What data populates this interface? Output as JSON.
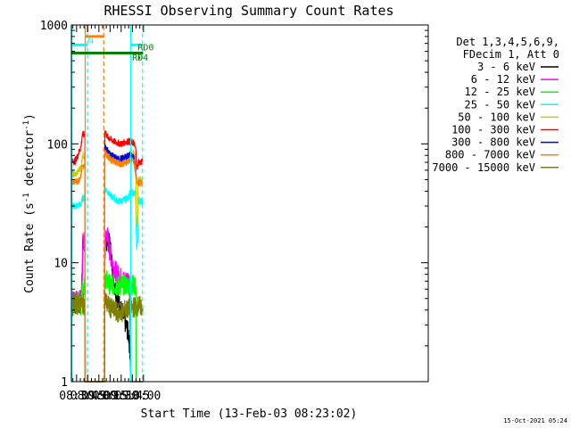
{
  "chart_data": {
    "type": "line",
    "title": "RHESSI Observing Summary Count Rates",
    "xlabel": "Start Time (13-Feb-03 08:23:02)",
    "ylabel_main": "Count Rate (s",
    "ylabel_sup1": "-1",
    "ylabel_mid": " detector",
    "ylabel_sup2": "-1",
    "ylabel_end": ")",
    "yscale": "log",
    "ylim": [
      1,
      1000
    ],
    "y_ticks": [
      {
        "v": 1,
        "label": "1"
      },
      {
        "v": 10,
        "label": "10"
      },
      {
        "v": 100,
        "label": "100"
      },
      {
        "v": 1000,
        "label": "1000"
      }
    ],
    "xlim_min": [
      503.0,
      983.0
    ],
    "x_ticks": [
      {
        "v": 510,
        "label": "08:30"
      },
      {
        "v": 525,
        "label": "08:45"
      },
      {
        "v": 540,
        "label": "09:00"
      },
      {
        "v": 555,
        "label": "09:15"
      },
      {
        "v": 570,
        "label": "09:30"
      },
      {
        "v": 585,
        "label": "09:45"
      },
      {
        "v": 600,
        "label": "10:00"
      }
    ],
    "legend_header": [
      "Det 1,3,4,5,6,9,",
      "FDecim 1, Att 0"
    ],
    "series": [
      {
        "name": "3 - 6 keV",
        "color": "#000000",
        "points": [
          [
            503,
            4.5
          ],
          [
            513,
            4.5
          ],
          [
            516,
            4.5
          ],
          [
            517.8,
            8
          ],
          [
            518.3,
            14
          ],
          [
            519.5,
            14
          ],
          [
            521.3,
            14
          ],
          [
            521.6,
            1
          ],
          [
            545,
            1
          ],
          [
            547.5,
            1
          ],
          [
            548,
            12
          ],
          [
            551,
            16
          ],
          [
            555,
            14
          ],
          [
            560,
            7
          ],
          [
            565,
            5
          ],
          [
            570,
            4
          ],
          [
            575,
            3.2
          ],
          [
            580,
            2.5
          ],
          [
            582,
            1.8
          ],
          [
            583,
            1
          ],
          [
            599,
            1
          ]
        ]
      },
      {
        "name": "6 - 12 keV",
        "color": "#ff00ff",
        "points": [
          [
            503,
            4.8
          ],
          [
            513,
            5
          ],
          [
            516,
            4.8
          ],
          [
            517.8,
            8.5
          ],
          [
            518.3,
            15
          ],
          [
            519.5,
            15
          ],
          [
            521.3,
            15
          ],
          [
            521.6,
            1
          ],
          [
            545,
            1
          ],
          [
            547.5,
            1
          ],
          [
            548,
            15
          ],
          [
            551,
            18
          ],
          [
            555,
            12
          ],
          [
            560,
            9
          ],
          [
            565,
            8
          ],
          [
            570,
            7.5
          ],
          [
            575,
            7
          ],
          [
            580,
            7.5
          ],
          [
            581,
            7
          ],
          [
            583,
            1
          ],
          [
            599,
            1
          ]
        ]
      },
      {
        "name": "12 - 25 keV",
        "color": "#00ff00",
        "points": [
          [
            503,
            4.2
          ],
          [
            513,
            4.5
          ],
          [
            516,
            4.5
          ],
          [
            517.8,
            6.5
          ],
          [
            518.3,
            6.5
          ],
          [
            519.5,
            6.5
          ],
          [
            521.3,
            6.5
          ],
          [
            521.6,
            1
          ],
          [
            545,
            1
          ],
          [
            547.5,
            1
          ],
          [
            548,
            7.5
          ],
          [
            555,
            6.5
          ],
          [
            560,
            6.5
          ],
          [
            565,
            6.3
          ],
          [
            570,
            6.5
          ],
          [
            575,
            6.5
          ],
          [
            580,
            6.5
          ],
          [
            583,
            6.5
          ],
          [
            587,
            6.5
          ],
          [
            589.7,
            6.3
          ],
          [
            590,
            1
          ],
          [
            599,
            1
          ]
        ]
      },
      {
        "name": "25 - 50 keV",
        "color": "#00ffff",
        "points": [
          [
            503,
            30
          ],
          [
            508,
            30
          ],
          [
            511,
            30
          ],
          [
            513,
            31
          ],
          [
            516,
            31
          ],
          [
            517.8,
            35
          ],
          [
            518.3,
            35
          ],
          [
            519.5,
            35
          ],
          [
            521.3,
            35
          ],
          [
            521.6,
            1
          ],
          [
            545,
            1
          ],
          [
            547.5,
            1
          ],
          [
            548,
            43
          ],
          [
            551,
            40
          ],
          [
            555,
            37
          ],
          [
            560,
            35
          ],
          [
            565,
            33
          ],
          [
            570,
            33
          ],
          [
            575,
            34
          ],
          [
            580,
            36
          ],
          [
            583,
            40
          ],
          [
            587,
            38
          ],
          [
            589.5,
            38
          ],
          [
            590.2,
            16
          ],
          [
            591.5,
            14
          ],
          [
            592.3,
            16
          ],
          [
            592.8,
            34
          ],
          [
            594.7,
            33
          ],
          [
            599,
            33
          ]
        ]
      },
      {
        "name": "50 - 100 keV",
        "color": "#cccc00",
        "points": [
          [
            503,
            56
          ],
          [
            508,
            55
          ],
          [
            511,
            57
          ],
          [
            513,
            60
          ],
          [
            516,
            65
          ],
          [
            517.8,
            80
          ],
          [
            518.3,
            80
          ],
          [
            519.5,
            80
          ],
          [
            521.3,
            80
          ],
          [
            521.6,
            1
          ],
          [
            545,
            1
          ],
          [
            547.5,
            1
          ],
          [
            548,
            90
          ],
          [
            551,
            85
          ],
          [
            555,
            80
          ],
          [
            560,
            77
          ],
          [
            565,
            75
          ],
          [
            570,
            75
          ],
          [
            575,
            77
          ],
          [
            580,
            80
          ],
          [
            583,
            83
          ],
          [
            587,
            82
          ],
          [
            589.5,
            78
          ],
          [
            590.3,
            24
          ],
          [
            591.5,
            20
          ],
          [
            592.3,
            25
          ],
          [
            592.8,
            50
          ],
          [
            594.7,
            50
          ],
          [
            599,
            50
          ]
        ]
      },
      {
        "name": "100 - 300 keV",
        "color": "#ff0000",
        "points": [
          [
            503,
            70
          ],
          [
            508,
            72
          ],
          [
            511,
            78
          ],
          [
            513,
            85
          ],
          [
            516,
            95
          ],
          [
            517.8,
            120
          ],
          [
            518.3,
            120
          ],
          [
            519.5,
            120
          ],
          [
            521.3,
            120
          ],
          [
            521.6,
            1
          ],
          [
            545,
            1
          ],
          [
            547.5,
            1
          ],
          [
            548,
            130
          ],
          [
            551,
            115
          ],
          [
            555,
            110
          ],
          [
            560,
            105
          ],
          [
            565,
            102
          ],
          [
            570,
            100
          ],
          [
            575,
            103
          ],
          [
            580,
            106
          ],
          [
            583,
            103
          ],
          [
            587,
            102
          ],
          [
            589.5,
            90
          ],
          [
            590.5,
            70
          ],
          [
            591.8,
            60
          ],
          [
            592.8,
            70
          ],
          [
            594.7,
            70
          ],
          [
            599,
            70
          ]
        ]
      },
      {
        "name": "300 - 800 keV",
        "color": "#0000ff",
        "points": [
          [
            548,
            97
          ],
          [
            551,
            90
          ],
          [
            555,
            82
          ],
          [
            560,
            78
          ],
          [
            565,
            74
          ],
          [
            570,
            75
          ],
          [
            575,
            77
          ],
          [
            580,
            80
          ],
          [
            583,
            82
          ],
          [
            587,
            75
          ],
          [
            589.5,
            58
          ],
          [
            590.5,
            52
          ]
        ]
      },
      {
        "name": "800 - 7000 keV",
        "color": "#ff8000",
        "points": [
          [
            503,
            48
          ],
          [
            508,
            48
          ],
          [
            511,
            48
          ],
          [
            513,
            50
          ],
          [
            516,
            55
          ],
          [
            517.8,
            65
          ],
          [
            518.3,
            65
          ],
          [
            519.5,
            65
          ],
          [
            521.3,
            65
          ],
          [
            521.6,
            1
          ],
          [
            545,
            1
          ],
          [
            547.5,
            1
          ],
          [
            548,
            85
          ],
          [
            551,
            80
          ],
          [
            555,
            75
          ],
          [
            560,
            72
          ],
          [
            565,
            69
          ],
          [
            570,
            68
          ],
          [
            575,
            69
          ],
          [
            580,
            72
          ],
          [
            583,
            74
          ],
          [
            587,
            70
          ],
          [
            589.5,
            55
          ],
          [
            590.5,
            50
          ],
          [
            591.8,
            48
          ],
          [
            592.8,
            47
          ],
          [
            594.7,
            47
          ],
          [
            599,
            47
          ]
        ]
      },
      {
        "name": "7000 - 15000 keV",
        "color": "#808000",
        "points": [
          [
            503,
            4.6
          ],
          [
            505,
            4.3
          ],
          [
            507,
            4.7
          ],
          [
            510,
            4.5
          ],
          [
            513,
            4.4
          ],
          [
            516,
            4.6
          ],
          [
            518,
            4.5
          ],
          [
            521,
            4.5
          ],
          [
            521.3,
            4.5
          ],
          [
            521.6,
            1
          ],
          [
            545,
            1
          ],
          [
            547.5,
            1
          ],
          [
            548,
            5
          ],
          [
            551,
            4.5
          ],
          [
            555,
            4.2
          ],
          [
            560,
            4
          ],
          [
            565,
            3.8
          ],
          [
            570,
            3.8
          ],
          [
            575,
            4
          ],
          [
            580,
            4.1
          ],
          [
            585,
            4.2
          ],
          [
            590,
            4.3
          ],
          [
            594.7,
            4.3
          ],
          [
            599,
            4.3
          ]
        ]
      }
    ],
    "vlines": [
      {
        "x": 503.5,
        "color": "#00ffff",
        "style": "solid"
      },
      {
        "x": 521.6,
        "color": "#ff8000",
        "style": "solid"
      },
      {
        "x": 524.6,
        "color": "#00ffff",
        "style": "dashed"
      },
      {
        "x": 546.6,
        "color": "#ff8000",
        "style": "dashed"
      },
      {
        "x": 582.8,
        "color": "#00ffff",
        "style": "solid"
      },
      {
        "x": 598.7,
        "color": "#00ffff",
        "style": "dashed"
      }
    ],
    "bars": [
      {
        "label": "S",
        "color": "#ff8000",
        "x1": 521.6,
        "x2": 546.6,
        "y": 800,
        "label_x": 519.5,
        "label_y": 880
      },
      {
        "label": "N",
        "color": "#00ffff",
        "x1": 503.5,
        "x2": 524.6,
        "y": 680,
        "label_x": 525.3,
        "label_y": 700
      },
      {
        "label": "N",
        "color": "#00ffff",
        "x1": 582.8,
        "x2": 599.5,
        "y": 680,
        "label_x": 0,
        "label_y": 0
      },
      {
        "label": "RD0",
        "color": "#008000",
        "x1": 503.5,
        "x2": 599.5,
        "y": 580,
        "label_x": 592.2,
        "label_y": 610
      },
      {
        "label": "RD4",
        "color": "#008000",
        "x1": 592.7,
        "x2": 595.7,
        "y": 530,
        "label_x": 584.7,
        "label_y": 500
      }
    ],
    "footer": "15-Oct-2021 05:24"
  }
}
